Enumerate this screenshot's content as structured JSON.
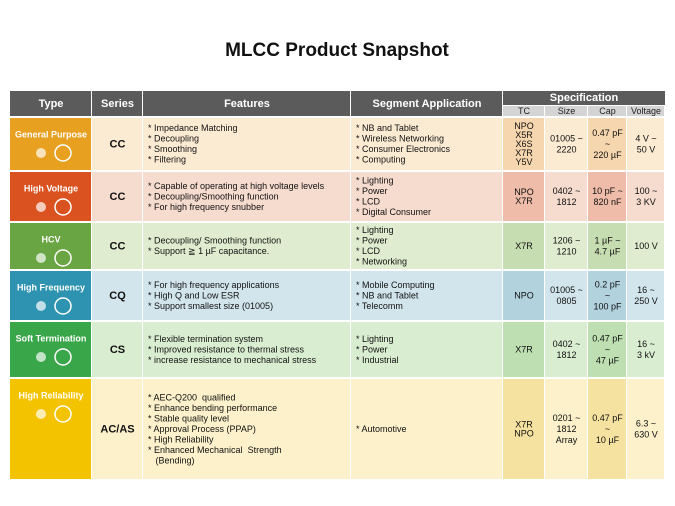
{
  "title": "MLCC Product Snapshot",
  "table": {
    "headers": [
      "Type",
      "Series",
      "Features",
      "Segment Application",
      "Specification"
    ],
    "spec_headers": [
      "TC",
      "Size",
      "Cap",
      "Voltage"
    ],
    "rows": [
      {
        "type": "General Purpose",
        "series": "CC",
        "features": [
          "* Impedance Matching",
          "* Decoupling",
          "* Smoothing",
          "* Filtering"
        ],
        "applications": [
          "* NB and Tablet",
          "* Wireless Networking",
          "* Consumer Electronics",
          "* Computing"
        ],
        "tc": [
          "NPO",
          "X5R",
          "X6S",
          "X7R",
          "Y5V"
        ],
        "size": [
          "01005 ~",
          "2220"
        ],
        "cap": [
          "0.47 pF",
          "~",
          "220 µF"
        ],
        "voltage": [
          "4 V ~",
          "50 V"
        ]
      },
      {
        "type": "High Voltage",
        "series": "CC",
        "features": [
          "* Capable of operating at high voltage levels",
          "* Decoupling/Smoothing function",
          "* For high frequency snubber"
        ],
        "applications": [
          "* Lighting",
          "* Power",
          "* LCD",
          "* Digital Consumer"
        ],
        "tc": [
          "NPO",
          "X7R"
        ],
        "size": [
          "0402 ~",
          "1812"
        ],
        "cap": [
          "10 pF ~",
          "820 nF"
        ],
        "voltage": [
          "100 ~",
          "3 KV"
        ]
      },
      {
        "type": "HCV",
        "series": "CC",
        "features": [
          "* Decoupling/ Smoothing function",
          "* Support ≧ 1 µF capacitance."
        ],
        "applications": [
          "* Lighting",
          "* Power",
          "* LCD",
          "* Networking"
        ],
        "tc": [
          "X7R"
        ],
        "size": [
          "1206 ~",
          "1210"
        ],
        "cap": [
          "1 µF ~",
          "4.7 µF"
        ],
        "voltage": [
          "100 V"
        ]
      },
      {
        "type": "High Frequency",
        "series": "CQ",
        "features": [
          "* For high frequency applications",
          "* High Q and Low ESR",
          "* Support smallest size (01005)"
        ],
        "applications": [
          "* Mobile Computing",
          "* NB and Tablet",
          "* Telecomm"
        ],
        "tc": [
          "NPO"
        ],
        "size": [
          "01005 ~",
          "0805"
        ],
        "cap": [
          "0.2 pF",
          "~",
          "100 pF"
        ],
        "voltage": [
          "16 ~",
          "250 V"
        ]
      },
      {
        "type": "Soft Termination",
        "series": "CS",
        "features": [
          "* Flexible termination system",
          "* Improved resistance to thermal stress",
          "* increase resistance to mechanical stress"
        ],
        "applications": [
          "* Lighting",
          "* Power",
          "* Industrial"
        ],
        "tc": [
          "X7R"
        ],
        "size": [
          "0402 ~",
          "1812"
        ],
        "cap": [
          "0.47 pF",
          "~",
          "47 µF"
        ],
        "voltage": [
          "16 ~",
          "3 kV"
        ]
      },
      {
        "type": "High Reliability",
        "series": "AC/AS",
        "features": [
          "* AEC-Q200  qualified",
          "* Enhance bending performance",
          "* Stable quality level",
          "* Approval Process (PPAP)",
          "* High Reliability",
          "* Enhanced Mechanical  Strength",
          "   (Bending)"
        ],
        "applications": [
          "* Automotive"
        ],
        "tc": [
          "X7R",
          "NPO"
        ],
        "size": [
          "0201 ~",
          "1812",
          "Array"
        ],
        "cap": [
          "0.47 pF",
          "~",
          "10 µF"
        ],
        "voltage": [
          "6.3 ~",
          "630 V"
        ]
      }
    ]
  }
}
